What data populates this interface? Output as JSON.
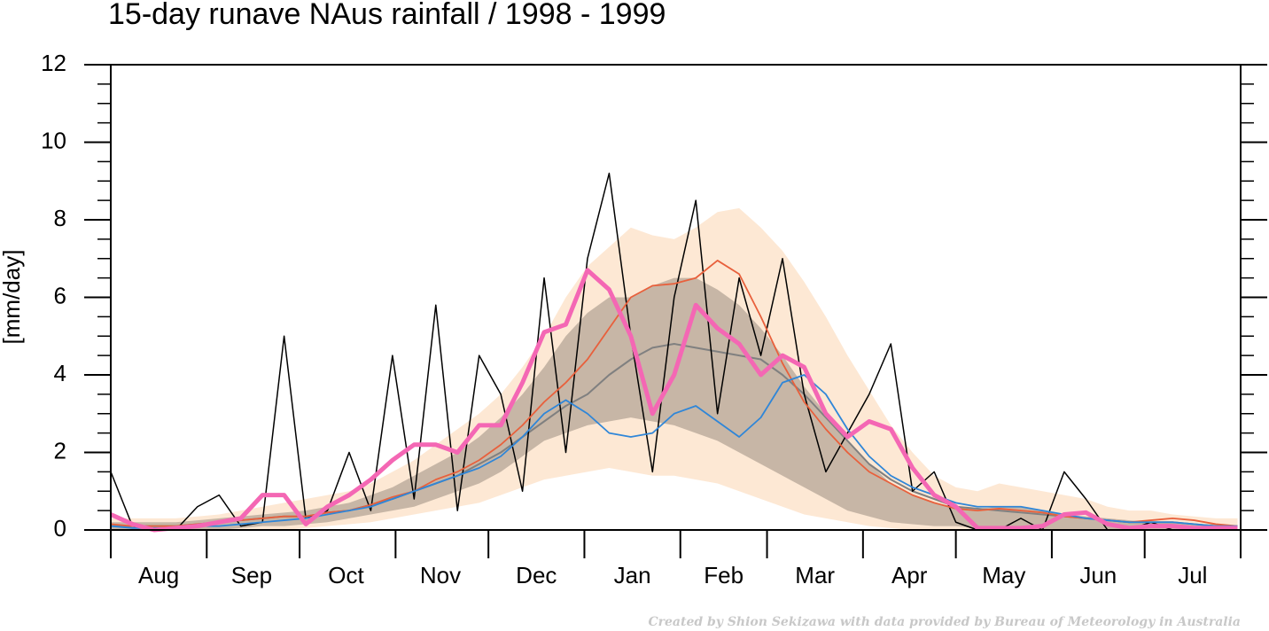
{
  "chart_data": {
    "type": "line",
    "title": "15-day runave NAus rainfall  /  1998 - 1999",
    "ylabel": "[mm/day]",
    "credit": "Created by Shion Sekizawa with data provided by Bureau of Meteorology in Australia",
    "xlim": [
      0,
      365
    ],
    "xticks": [
      {
        "value": 15.5,
        "label": "Aug"
      },
      {
        "value": 45.5,
        "label": "Sep"
      },
      {
        "value": 76,
        "label": "Oct"
      },
      {
        "value": 106.5,
        "label": "Nov"
      },
      {
        "value": 137.5,
        "label": "Dec"
      },
      {
        "value": 168.5,
        "label": "Jan"
      },
      {
        "value": 198,
        "label": "Feb"
      },
      {
        "value": 227.5,
        "label": "Mar"
      },
      {
        "value": 258,
        "label": "Apr"
      },
      {
        "value": 288.5,
        "label": "May"
      },
      {
        "value": 319,
        "label": "Jun"
      },
      {
        "value": 349.5,
        "label": "Jul"
      }
    ],
    "xminor_ticks": [
      0,
      31,
      61,
      92,
      122,
      153,
      184,
      212,
      243,
      273,
      304,
      334,
      365
    ],
    "ylim": [
      0,
      12
    ],
    "yticks": [
      0,
      2,
      4,
      6,
      8,
      10,
      12
    ],
    "yminor_ticks": [
      0.5,
      1,
      1.5,
      2.5,
      3,
      3.5,
      4.5,
      5,
      5.5,
      6.5,
      7,
      7.5,
      8.5,
      9,
      9.5,
      10.5,
      11,
      11.5
    ],
    "x": [
      0,
      7,
      14,
      21,
      28,
      35,
      42,
      49,
      56,
      63,
      70,
      77,
      84,
      91,
      98,
      105,
      112,
      119,
      126,
      133,
      140,
      147,
      154,
      161,
      168,
      175,
      182,
      189,
      196,
      203,
      210,
      217,
      224,
      231,
      238,
      245,
      252,
      259,
      266,
      273,
      280,
      287,
      294,
      301,
      308,
      315,
      322,
      329,
      336,
      343,
      350,
      357,
      364
    ],
    "bands": [
      {
        "color": "#fde8d4",
        "upper": [
          0.3,
          0.3,
          0.3,
          0.3,
          0.35,
          0.4,
          0.5,
          0.6,
          0.7,
          0.8,
          0.9,
          1.0,
          1.2,
          1.5,
          1.8,
          2.2,
          2.6,
          3.0,
          3.5,
          4.2,
          5.0,
          6.0,
          6.8,
          7.3,
          7.8,
          7.6,
          7.5,
          7.8,
          8.2,
          8.3,
          7.8,
          7.2,
          6.4,
          5.5,
          4.5,
          3.6,
          2.7,
          2.0,
          1.4,
          1.1,
          1.0,
          1.2,
          1.1,
          1.0,
          0.9,
          0.8,
          0.6,
          0.5,
          0.5,
          0.4,
          0.35,
          0.3,
          0.3
        ],
        "lower": [
          0,
          0,
          0,
          0,
          0,
          0,
          0,
          0,
          0,
          0.05,
          0.1,
          0.15,
          0.2,
          0.3,
          0.4,
          0.5,
          0.6,
          0.7,
          0.9,
          1.1,
          1.3,
          1.4,
          1.5,
          1.6,
          1.5,
          1.4,
          1.4,
          1.3,
          1.2,
          1.0,
          0.8,
          0.6,
          0.4,
          0.3,
          0.2,
          0.1,
          0.05,
          0,
          0,
          0,
          0,
          0,
          0,
          0,
          0,
          0,
          0,
          0,
          0,
          0,
          0,
          0,
          0
        ]
      },
      {
        "color": "#c7b6a6",
        "upper": [
          0.2,
          0.2,
          0.2,
          0.2,
          0.25,
          0.3,
          0.35,
          0.4,
          0.45,
          0.5,
          0.6,
          0.7,
          0.9,
          1.1,
          1.4,
          1.7,
          2.0,
          2.4,
          2.9,
          3.5,
          4.2,
          5.0,
          5.6,
          6.0,
          6.0,
          6.3,
          6.5,
          6.5,
          6.2,
          5.8,
          5.2,
          4.5,
          3.7,
          3.0,
          2.3,
          1.7,
          1.2,
          0.9,
          0.7,
          0.6,
          0.55,
          0.6,
          0.6,
          0.5,
          0.4,
          0.35,
          0.3,
          0.25,
          0.2,
          0.2,
          0.15,
          0.15,
          0.1
        ],
        "lower": [
          0,
          0,
          0,
          0,
          0,
          0,
          0.05,
          0.1,
          0.1,
          0.15,
          0.2,
          0.3,
          0.4,
          0.5,
          0.6,
          0.8,
          1.0,
          1.2,
          1.5,
          1.9,
          2.3,
          2.5,
          2.7,
          2.8,
          2.9,
          2.8,
          2.7,
          2.5,
          2.3,
          2.0,
          1.7,
          1.4,
          1.1,
          0.8,
          0.5,
          0.35,
          0.2,
          0.15,
          0.1,
          0.1,
          0.05,
          0.05,
          0.05,
          0,
          0,
          0,
          0,
          0,
          0,
          0,
          0,
          0,
          0
        ]
      }
    ],
    "series": [
      {
        "color": "#808080",
        "width": 2,
        "values": [
          0.1,
          0.1,
          0.1,
          0.1,
          0.15,
          0.2,
          0.25,
          0.3,
          0.35,
          0.35,
          0.45,
          0.5,
          0.65,
          0.8,
          1.0,
          1.2,
          1.4,
          1.7,
          2.0,
          2.4,
          2.8,
          3.2,
          3.5,
          4.0,
          4.4,
          4.7,
          4.8,
          4.7,
          4.6,
          4.5,
          4.4,
          4.0,
          3.5,
          2.9,
          2.3,
          1.7,
          1.3,
          1.0,
          0.8,
          0.6,
          0.55,
          0.5,
          0.45,
          0.4,
          0.35,
          0.3,
          0.25,
          0.2,
          0.2,
          0.2,
          0.15,
          0.1,
          0.1
        ]
      },
      {
        "color": "#000000",
        "width": 1.5,
        "values": [
          1.5,
          0.1,
          0,
          0,
          0.6,
          0.9,
          0.1,
          0.2,
          5.0,
          0.3,
          0.5,
          2.0,
          0.5,
          4.5,
          0.8,
          5.8,
          0.5,
          4.5,
          3.5,
          1.0,
          6.5,
          2.0,
          7.0,
          9.2,
          5.0,
          1.5,
          6.0,
          8.5,
          3.0,
          6.5,
          4.5,
          7.0,
          3.5,
          1.5,
          2.5,
          3.5,
          4.8,
          1.0,
          1.5,
          0.2,
          0,
          0,
          0.3,
          0,
          1.5,
          0.8,
          0,
          0,
          0.2,
          0,
          0,
          0,
          0
        ]
      },
      {
        "color": "#e8603c",
        "width": 1.8,
        "values": [
          0.15,
          0.1,
          0.1,
          0.1,
          0.15,
          0.2,
          0.25,
          0.3,
          0.35,
          0.35,
          0.45,
          0.5,
          0.65,
          0.85,
          1.0,
          1.3,
          1.5,
          1.8,
          2.2,
          2.7,
          3.3,
          3.8,
          4.4,
          5.2,
          6.0,
          6.3,
          6.35,
          6.5,
          6.95,
          6.6,
          5.5,
          4.3,
          3.3,
          2.6,
          2.0,
          1.5,
          1.2,
          0.9,
          0.7,
          0.55,
          0.5,
          0.55,
          0.5,
          0.45,
          0.35,
          0.3,
          0.25,
          0.2,
          0.25,
          0.3,
          0.25,
          0.15,
          0.1
        ]
      },
      {
        "color": "#2f86d8",
        "width": 1.8,
        "values": [
          0.1,
          0.05,
          0.05,
          0.05,
          0.1,
          0.1,
          0.15,
          0.2,
          0.25,
          0.3,
          0.4,
          0.5,
          0.6,
          0.8,
          1.0,
          1.2,
          1.4,
          1.6,
          1.9,
          2.4,
          3.0,
          3.35,
          3.0,
          2.5,
          2.4,
          2.5,
          3.0,
          3.2,
          2.8,
          2.4,
          2.9,
          3.8,
          4.0,
          3.5,
          2.6,
          1.9,
          1.4,
          1.1,
          0.9,
          0.7,
          0.6,
          0.6,
          0.6,
          0.5,
          0.4,
          0.3,
          0.25,
          0.2,
          0.2,
          0.2,
          0.15,
          0.1,
          0.1
        ]
      },
      {
        "color": "#f467b4",
        "width": 5,
        "values": [
          0.4,
          0.15,
          0,
          0.05,
          0.1,
          0.2,
          0.3,
          0.9,
          0.9,
          0.15,
          0.6,
          0.9,
          1.3,
          1.8,
          2.2,
          2.2,
          2.0,
          2.7,
          2.7,
          3.8,
          5.1,
          5.3,
          6.7,
          6.2,
          5.0,
          3.0,
          4.0,
          5.8,
          5.2,
          4.8,
          4.0,
          4.5,
          4.2,
          3.0,
          2.4,
          2.8,
          2.6,
          1.6,
          0.9,
          0.6,
          0.05,
          0.05,
          0.05,
          0.1,
          0.4,
          0.45,
          0.15,
          0.05,
          0.1,
          0.1,
          0.05,
          0.05,
          0.05
        ]
      }
    ]
  }
}
